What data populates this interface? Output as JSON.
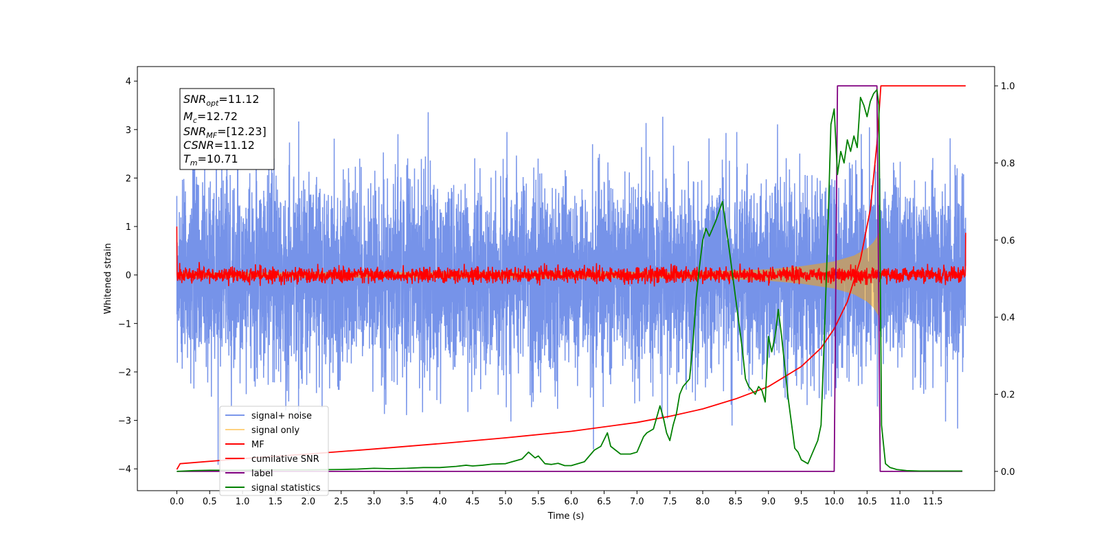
{
  "chart_data": {
    "type": "line",
    "xlabel": "Time (s)",
    "ylabel": "Whitened strain",
    "xlim": [
      -0.6,
      12.44
    ],
    "ylim": [
      -4.45,
      4.3
    ],
    "y2lim": [
      -0.05,
      1.05
    ],
    "x_ticks": [
      "0.0",
      "0.5",
      "1.0",
      "1.5",
      "2.0",
      "2.5",
      "3.0",
      "3.5",
      "4.0",
      "4.5",
      "5.0",
      "5.5",
      "6.0",
      "6.5",
      "7.0",
      "7.5",
      "8.0",
      "8.5",
      "9.0",
      "9.5",
      "10.0",
      "10.5",
      "11.0",
      "11.5"
    ],
    "y_ticks": [
      "−4",
      "−3",
      "−2",
      "−1",
      "0",
      "1",
      "2",
      "3",
      "4"
    ],
    "y2_ticks": [
      "0.0",
      "0.2",
      "0.4",
      "0.6",
      "0.8",
      "1.0"
    ],
    "legend_position": "lower-left",
    "legend": [
      {
        "label": "signal+ noise",
        "color": "#4169e1",
        "alpha": 0.7
      },
      {
        "label": "signal only",
        "color": "#ffa500",
        "alpha": 0.5
      },
      {
        "label": "MF",
        "color": "#ff0000"
      },
      {
        "label": "cumilative SNR",
        "color": "#ff0000"
      },
      {
        "label": "label",
        "color": "#800080"
      },
      {
        "label": "signal statistics",
        "color": "#008000"
      }
    ],
    "annotation": {
      "snr_opt": "11.12",
      "mc": "12.72",
      "snr_mf": "[12.23]",
      "csnr": "11.12",
      "tm": "10.71"
    },
    "series": [
      {
        "name": "signal+ noise",
        "axis": "left",
        "description": "white noise, std ≈ 1.0, x from 0 to 12",
        "x_range": [
          0,
          12
        ],
        "envelope": [
          -4.2,
          3.9
        ]
      },
      {
        "name": "signal only",
        "axis": "left",
        "description": "chirp with amplitude growing toward merger",
        "x": [
          0,
          8.0,
          9.0,
          9.5,
          10.0,
          10.3,
          10.5,
          10.6,
          10.7,
          10.71
        ],
        "amplitude": [
          0.05,
          0.07,
          0.12,
          0.18,
          0.28,
          0.4,
          0.55,
          0.68,
          0.9,
          0.0
        ]
      },
      {
        "name": "MF",
        "axis": "left",
        "description": "matched-filter noise around 0, std ≈ 0.08; edge spikes to 1.0 at x=0 and 0.87 at x=12",
        "x_range": [
          0,
          12
        ]
      },
      {
        "name": "cumilative SNR",
        "axis": "right",
        "x": [
          0.0,
          0.05,
          1.0,
          2.0,
          3.0,
          4.0,
          5.0,
          6.0,
          7.0,
          7.5,
          8.0,
          8.5,
          9.0,
          9.5,
          9.8,
          10.0,
          10.2,
          10.4,
          10.55,
          10.65,
          10.71,
          12.0
        ],
        "y": [
          0.005,
          0.02,
          0.033,
          0.045,
          0.058,
          0.072,
          0.087,
          0.104,
          0.127,
          0.143,
          0.162,
          0.188,
          0.22,
          0.272,
          0.32,
          0.37,
          0.44,
          0.55,
          0.68,
          0.85,
          1.0,
          1.0
        ]
      },
      {
        "name": "label",
        "axis": "right",
        "x": [
          0.0,
          10.0,
          10.05,
          10.65,
          10.7,
          10.75,
          11.95
        ],
        "y": [
          0.0,
          0.0,
          1.0,
          1.0,
          0.0,
          0.0,
          0.0
        ]
      },
      {
        "name": "signal statistics",
        "axis": "right",
        "x": [
          0.0,
          0.25,
          0.5,
          1.0,
          1.5,
          2.0,
          2.5,
          2.75,
          3.0,
          3.25,
          3.5,
          3.75,
          4.0,
          4.25,
          4.4,
          4.5,
          4.65,
          4.8,
          5.0,
          5.1,
          5.25,
          5.35,
          5.45,
          5.5,
          5.6,
          5.7,
          5.8,
          5.9,
          6.0,
          6.2,
          6.35,
          6.45,
          6.55,
          6.6,
          6.75,
          6.9,
          7.0,
          7.1,
          7.15,
          7.25,
          7.35,
          7.4,
          7.45,
          7.5,
          7.55,
          7.6,
          7.65,
          7.7,
          7.75,
          7.8,
          7.85,
          7.9,
          7.95,
          8.0,
          8.05,
          8.1,
          8.2,
          8.3,
          8.4,
          8.5,
          8.6,
          8.65,
          8.7,
          8.8,
          8.85,
          8.9,
          8.95,
          9.0,
          9.05,
          9.1,
          9.15,
          9.2,
          9.3,
          9.4,
          9.45,
          9.5,
          9.6,
          9.65,
          9.7,
          9.75,
          9.8,
          9.85,
          9.9,
          9.95,
          10.0,
          10.05,
          10.1,
          10.15,
          10.2,
          10.25,
          10.3,
          10.35,
          10.4,
          10.45,
          10.5,
          10.55,
          10.6,
          10.65,
          10.68,
          10.72,
          10.78,
          10.85,
          10.95,
          11.1,
          11.3,
          11.95
        ],
        "y": [
          0.0,
          0.002,
          0.003,
          0.003,
          0.004,
          0.004,
          0.005,
          0.006,
          0.008,
          0.007,
          0.008,
          0.01,
          0.01,
          0.013,
          0.016,
          0.014,
          0.016,
          0.019,
          0.02,
          0.025,
          0.032,
          0.05,
          0.035,
          0.04,
          0.02,
          0.018,
          0.021,
          0.015,
          0.015,
          0.025,
          0.055,
          0.065,
          0.1,
          0.065,
          0.045,
          0.045,
          0.05,
          0.09,
          0.1,
          0.11,
          0.17,
          0.14,
          0.1,
          0.08,
          0.12,
          0.15,
          0.2,
          0.22,
          0.23,
          0.24,
          0.33,
          0.45,
          0.53,
          0.6,
          0.63,
          0.61,
          0.65,
          0.7,
          0.58,
          0.45,
          0.32,
          0.24,
          0.22,
          0.2,
          0.22,
          0.21,
          0.18,
          0.35,
          0.31,
          0.35,
          0.42,
          0.35,
          0.19,
          0.06,
          0.05,
          0.03,
          0.02,
          0.04,
          0.06,
          0.08,
          0.12,
          0.35,
          0.6,
          0.9,
          0.94,
          0.77,
          0.83,
          0.8,
          0.86,
          0.83,
          0.87,
          0.84,
          0.97,
          0.95,
          0.92,
          0.96,
          0.98,
          0.99,
          0.95,
          0.12,
          0.02,
          0.01,
          0.005,
          0.002,
          0.001,
          0.001
        ]
      }
    ]
  }
}
